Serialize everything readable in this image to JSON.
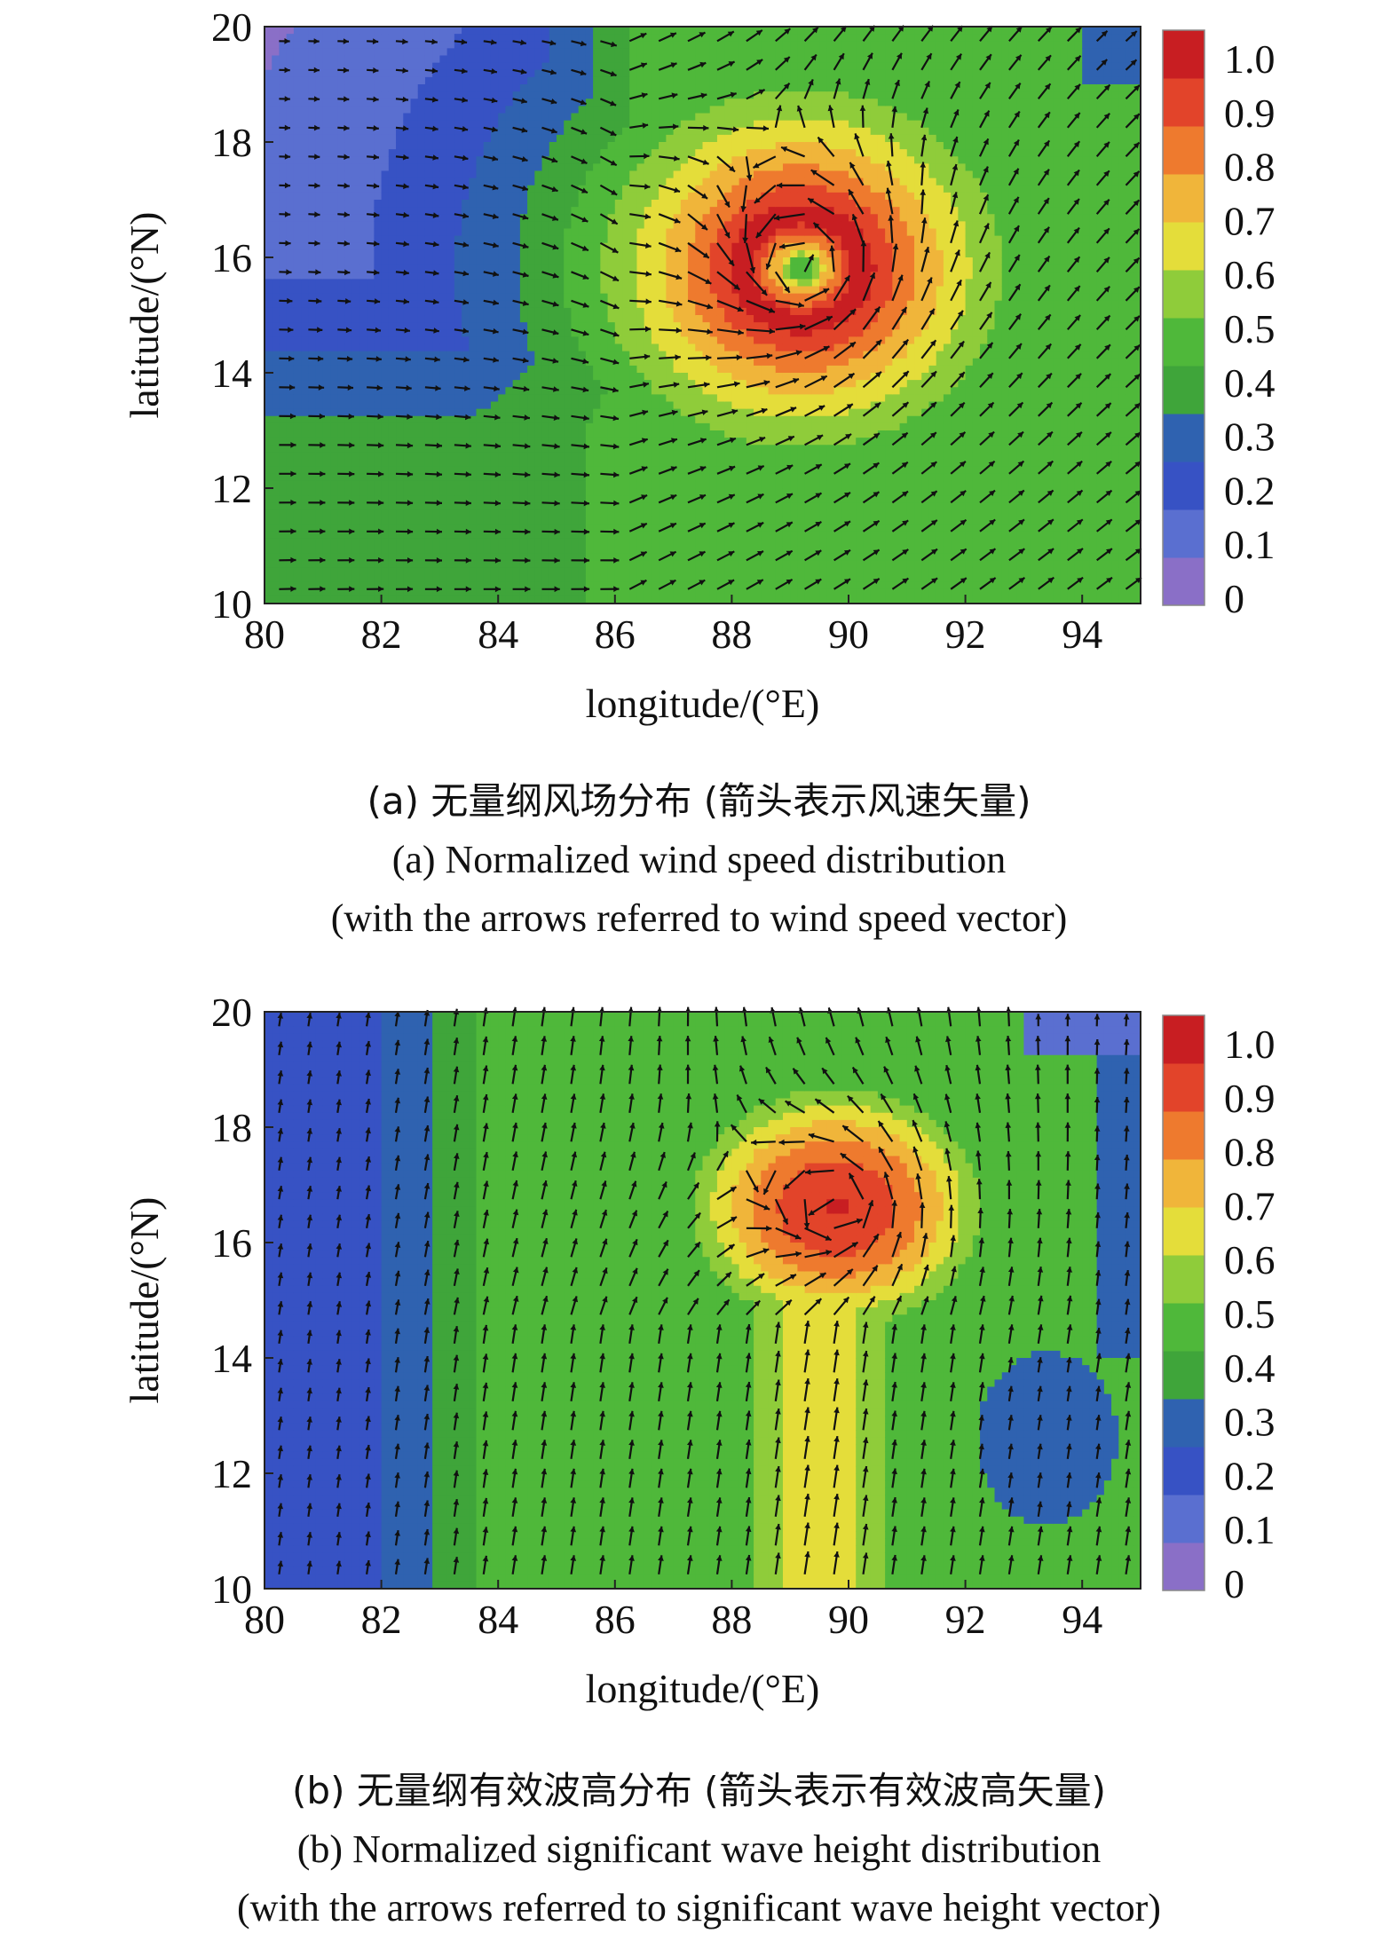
{
  "chart_data": [
    {
      "type": "heatmap",
      "panel_label": "(a)",
      "caption_cn": "(a) 无量纲风场分布 (箭头表示风速矢量)",
      "caption_en_line1": "(a) Normalized wind speed distribution",
      "caption_en_line2": "(with the arrows referred to wind speed vector)",
      "xlabel": "longitude/(°E)",
      "ylabel": "latitude/(°N)",
      "xlim": [
        80,
        95
      ],
      "ylim": [
        10,
        20
      ],
      "xticks": [
        80,
        82,
        84,
        86,
        88,
        90,
        92,
        94
      ],
      "yticks": [
        10,
        12,
        14,
        16,
        18,
        20
      ],
      "colorbar": {
        "range": [
          0,
          1.0
        ],
        "ticks": [
          "1.0",
          "0.9",
          "0.8",
          "0.7",
          "0.6",
          "0.5",
          "0.4",
          "0.3",
          "0.2",
          "0.1",
          "0"
        ]
      },
      "field": {
        "kind": "cyclone-wind",
        "eye": [
          89.2,
          15.8
        ],
        "eye_radius_deg": 0.35,
        "max_radius_deg": 1.0,
        "peak_value": 1.0,
        "background_west": 0.25,
        "background_south": 0.45
      },
      "vectors": "wind speed vector",
      "arrow_spacing_deg": [
        0.5,
        0.5
      ]
    },
    {
      "type": "heatmap",
      "panel_label": "(b)",
      "caption_cn": "(b) 无量纲有效波高分布 (箭头表示有效波高矢量)",
      "caption_en_line1": "(b) Normalized significant wave height distribution",
      "caption_en_line2": "(with the arrows referred to significant wave height vector)",
      "xlabel": "longitude/(°E)",
      "ylabel": "latitude/(°N)",
      "xlim": [
        80,
        95
      ],
      "ylim": [
        10,
        20
      ],
      "xticks": [
        80,
        82,
        84,
        86,
        88,
        90,
        92,
        94
      ],
      "yticks": [
        10,
        12,
        14,
        16,
        18,
        20
      ],
      "colorbar": {
        "range": [
          0,
          1.0
        ],
        "ticks": [
          "1.0",
          "0.9",
          "0.8",
          "0.7",
          "0.6",
          "0.5",
          "0.4",
          "0.3",
          "0.2",
          "0.1",
          "0"
        ]
      },
      "field": {
        "kind": "cyclone-wave",
        "peak": [
          89.8,
          16.6
        ],
        "peak_value": 0.92,
        "low_patch": [
          93.4,
          12.6
        ]
      },
      "vectors": "significant wave height vector",
      "arrow_spacing_deg": [
        0.5,
        0.5
      ]
    }
  ],
  "colormap": [
    "#8a6fc7",
    "#5a6fd0",
    "#3752c4",
    "#2f62b0",
    "#3fa53a",
    "#4fb83a",
    "#8fcc3a",
    "#e4dd3a",
    "#f0b53a",
    "#ee7a2e",
    "#e2442a",
    "#c81e22"
  ]
}
